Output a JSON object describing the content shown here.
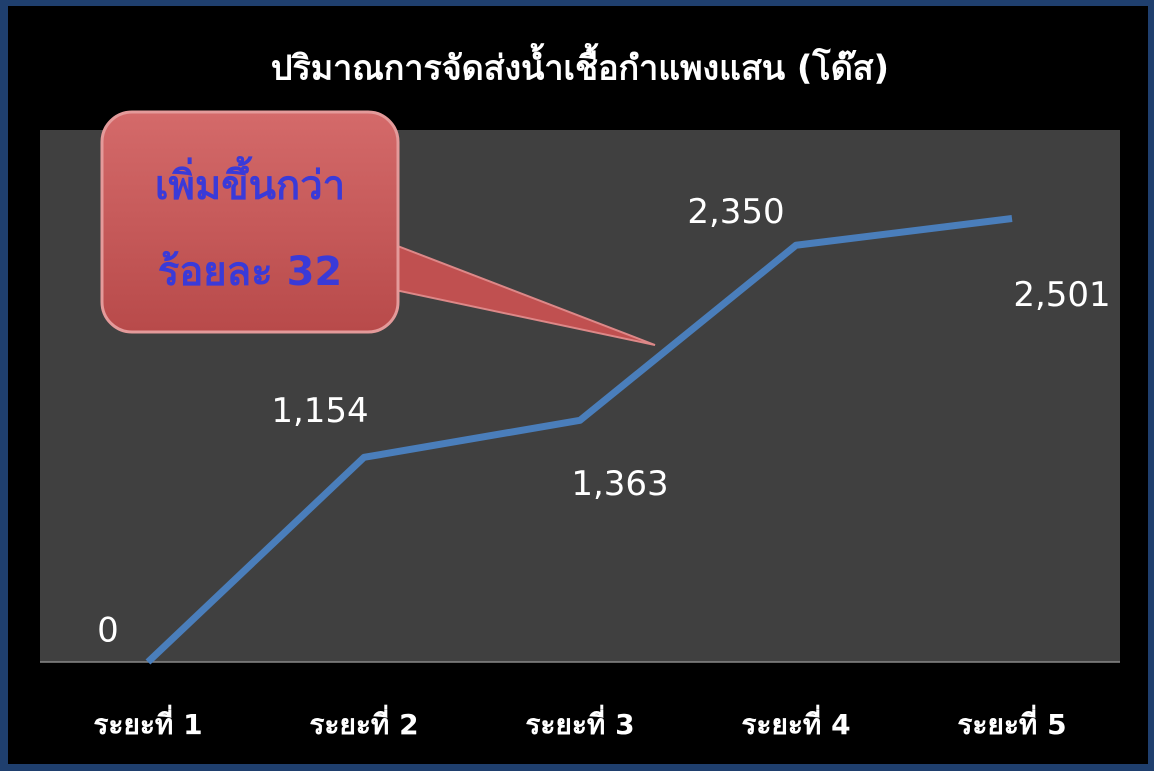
{
  "chart_data": {
    "type": "line",
    "title": "ปริมาณการจัดส่งน้ำเชื้อกำแพงแสน (โด๊ส)",
    "categories": [
      "ระยะที่ 1",
      "ระยะที่ 2",
      "ระยะที่ 3",
      "ระยะที่ 4",
      "ระยะที่ 5"
    ],
    "series": [
      {
        "name": "ปริมาณการจัดส่ง",
        "color": "#4a7ebb",
        "values": [
          0,
          1154,
          1363,
          2350,
          2501
        ],
        "value_labels": [
          "0",
          "1,154",
          "1,363",
          "2,350",
          "2,501"
        ]
      }
    ],
    "ylim": [
      0,
      3000
    ],
    "annotation": [
      "เพิ่มขึ้นกว่า",
      "ร้อยละ 32"
    ]
  }
}
